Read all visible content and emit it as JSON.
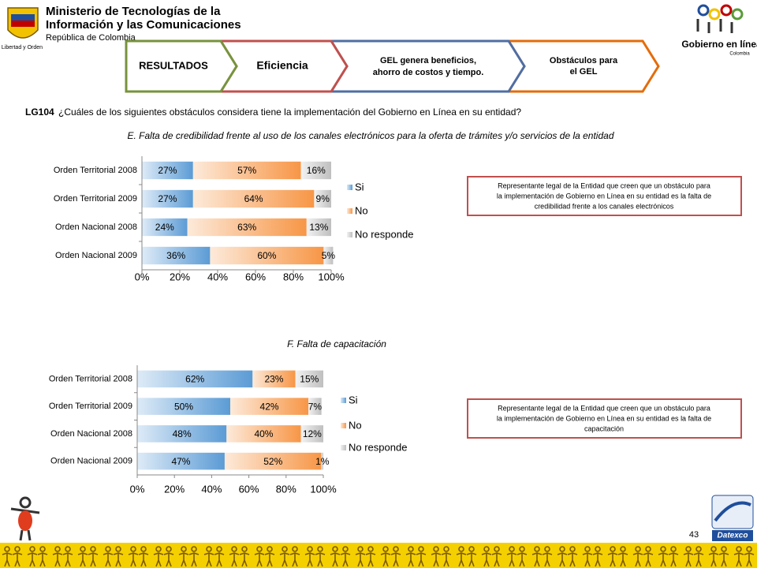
{
  "header": {
    "ministry": [
      "Ministerio de Tecnologías de la",
      "Información y las Comunicaciones",
      "República de Colombia"
    ],
    "seal_caption": "Libertad y Orden",
    "gel_logo": "Gobierno en línea",
    "gel_country": "Colombia"
  },
  "tabs": [
    [
      "RESULTADOS"
    ],
    [
      "Eficiencia"
    ],
    [
      "GEL genera beneficios,",
      "ahorro de costos y tiempo."
    ],
    [
      "Obstáculos para",
      "el GEL"
    ]
  ],
  "question": {
    "code": "LG104",
    "text": "¿Cuáles de los siguientes obstáculos considera tiene la implementación del Gobierno en Línea  en su entidad?"
  },
  "chart_data": [
    {
      "type": "bar",
      "orientation": "horizontal",
      "stacked": true,
      "title": "E. Falta de credibilidad frente al uso de los canales electrónicos para la oferta de trámites y/o servicios de la entidad",
      "categories": [
        "Orden Territorial 2008",
        "Orden Territorial 2009",
        "Orden Nacional 2008",
        "Orden Nacional 2009"
      ],
      "series": [
        {
          "name": "Si",
          "color": "#5b9bd5",
          "values": [
            27,
            27,
            24,
            36
          ],
          "value_labels": [
            "27%",
            "27%",
            "24%",
            "36%"
          ]
        },
        {
          "name": "No",
          "color": "#f79646",
          "values": [
            57,
            64,
            63,
            60
          ],
          "value_labels": [
            "57%",
            "64%",
            "63%",
            "60%"
          ]
        },
        {
          "name": "No responde",
          "color": "#bfbfbf",
          "values": [
            16,
            9,
            13,
            5
          ],
          "value_labels": [
            "16%",
            "9%",
            "13%",
            "5%"
          ]
        }
      ],
      "xlim": [
        0,
        100
      ],
      "xticks": [
        {
          "value": 0,
          "label": "0%"
        },
        {
          "value": 20,
          "label": "20%"
        },
        {
          "value": 40,
          "label": "40%"
        },
        {
          "value": 60,
          "label": "60%"
        },
        {
          "value": 80,
          "label": "80%"
        },
        {
          "value": 100,
          "label": "100%"
        }
      ]
    },
    {
      "type": "bar",
      "orientation": "horizontal",
      "stacked": true,
      "title": "F. Falta de capacitación",
      "categories": [
        "Orden Territorial 2008",
        "Orden Territorial 2009",
        "Orden Nacional 2008",
        "Orden Nacional 2009"
      ],
      "series": [
        {
          "name": "Si",
          "color": "#5b9bd5",
          "values": [
            62,
            50,
            48,
            47
          ],
          "value_labels": [
            "62%",
            "50%",
            "48%",
            "47%"
          ]
        },
        {
          "name": "No",
          "color": "#f79646",
          "values": [
            23,
            42,
            40,
            52
          ],
          "value_labels": [
            "23%",
            "42%",
            "40%",
            "52%"
          ]
        },
        {
          "name": "No responde",
          "color": "#bfbfbf",
          "values": [
            15,
            7,
            12,
            1
          ],
          "value_labels": [
            "15%",
            "7%",
            "12%",
            "1%"
          ]
        }
      ],
      "xlim": [
        0,
        100
      ],
      "xticks": [
        {
          "value": 0,
          "label": "0%"
        },
        {
          "value": 20,
          "label": "20%"
        },
        {
          "value": 40,
          "label": "40%"
        },
        {
          "value": 60,
          "label": "60%"
        },
        {
          "value": 80,
          "label": "80%"
        },
        {
          "value": 100,
          "label": "100%"
        }
      ]
    }
  ],
  "notes": [
    [
      "Representante legal de la Entidad que creen que un obstáculo para",
      "la implementación de Gobierno en Línea en su entidad es la falta de",
      "credibilidad frente a los canales electrónicos"
    ],
    [
      "Representante legal de la Entidad que creen que un obstáculo para",
      "la implementación de Gobierno en Línea en su entidad es la falta de",
      "capacitación"
    ]
  ],
  "page_number": "43",
  "footer_logo": "Datexco"
}
